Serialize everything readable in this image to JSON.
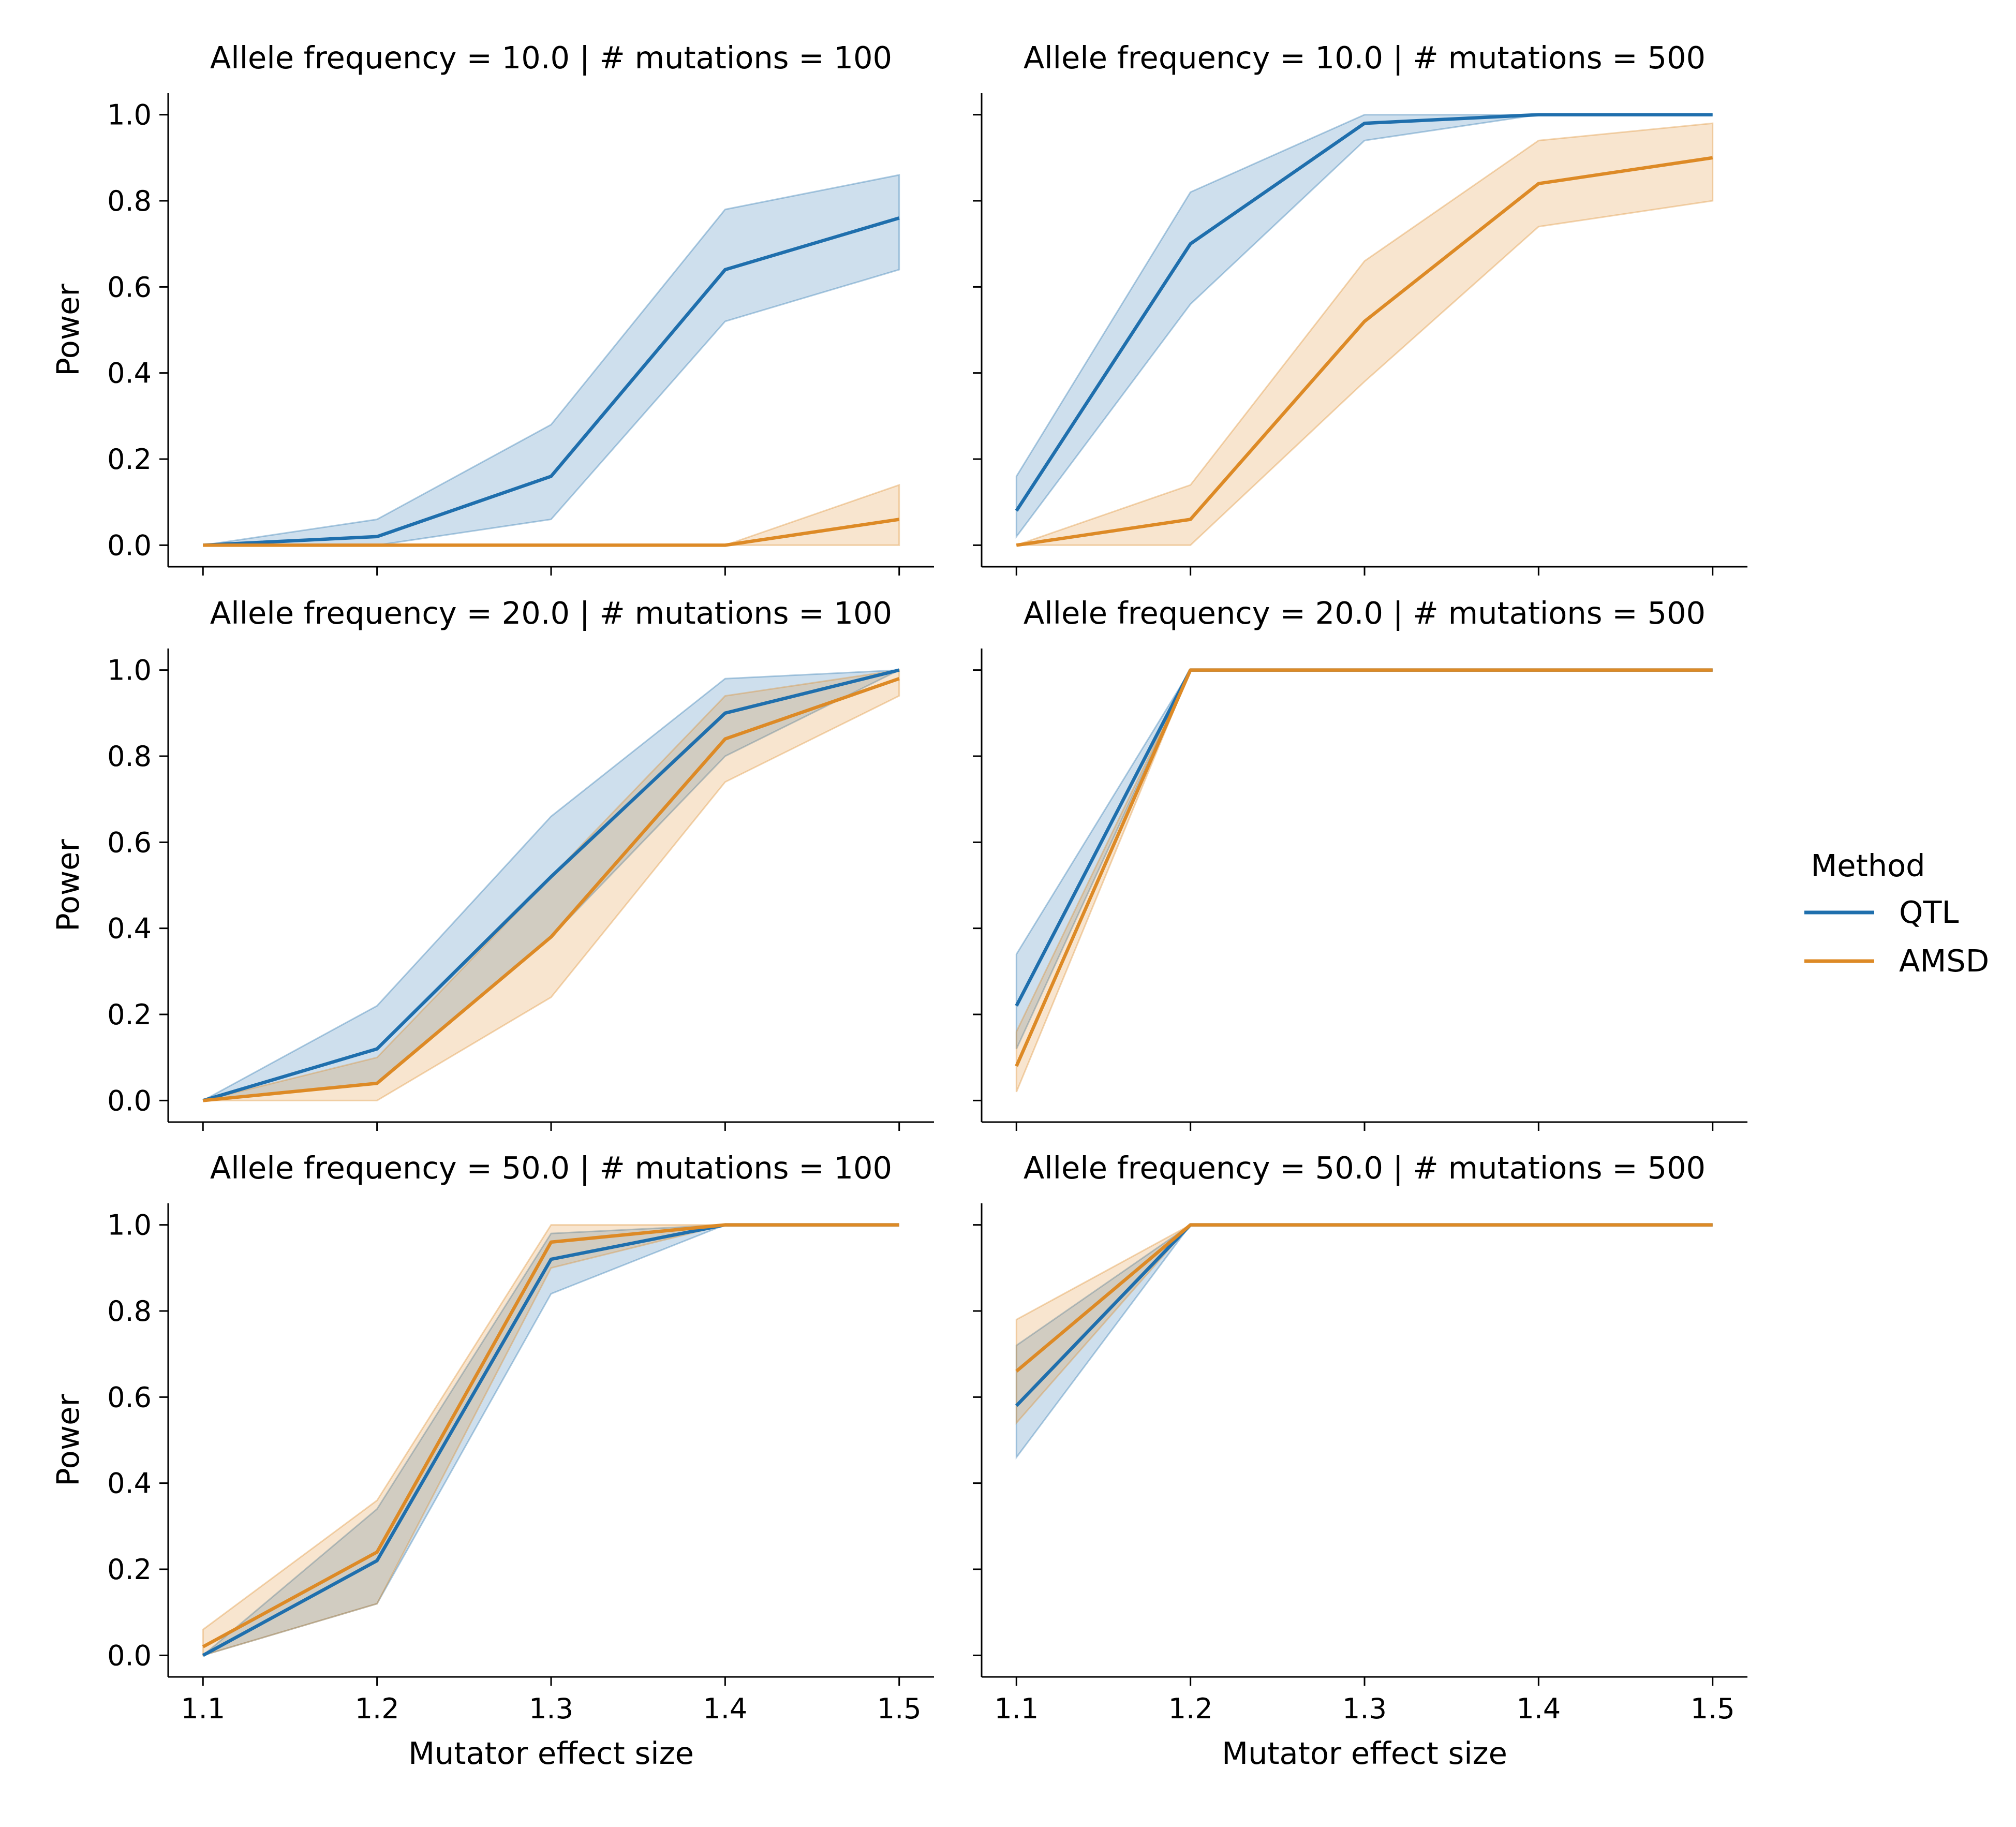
{
  "legend": {
    "title": "Method",
    "placement": "right",
    "entries": [
      {
        "name": "QTL",
        "color": "#1f6fad"
      },
      {
        "name": "AMSD",
        "color": "#dd8a26"
      }
    ]
  },
  "axes": {
    "xlabel": "Mutator effect size",
    "ylabel": "Power",
    "xlim": [
      1.08,
      1.52
    ],
    "ylim": [
      -0.05,
      1.05
    ],
    "xticks": [
      "1.1",
      "1.2",
      "1.3",
      "1.4",
      "1.5"
    ],
    "yticks": [
      "0.0",
      "0.2",
      "0.4",
      "0.6",
      "0.8",
      "1.0"
    ]
  },
  "chart_data": [
    {
      "type": "line",
      "title": "Allele frequency = 10.0 | # mutations = 100",
      "x": [
        1.1,
        1.2,
        1.3,
        1.4,
        1.5
      ],
      "series": [
        {
          "name": "QTL",
          "values": [
            0.0,
            0.02,
            0.16,
            0.64,
            0.76
          ],
          "lower": [
            0.0,
            0.0,
            0.06,
            0.52,
            0.64
          ],
          "upper": [
            0.0,
            0.06,
            0.28,
            0.78,
            0.86
          ]
        },
        {
          "name": "AMSD",
          "values": [
            0.0,
            0.0,
            0.0,
            0.0,
            0.06
          ],
          "lower": [
            0.0,
            0.0,
            0.0,
            0.0,
            0.0
          ],
          "upper": [
            0.0,
            0.0,
            0.0,
            0.0,
            0.14
          ]
        }
      ]
    },
    {
      "type": "line",
      "title": "Allele frequency = 10.0 | # mutations = 500",
      "x": [
        1.1,
        1.2,
        1.3,
        1.4,
        1.5
      ],
      "series": [
        {
          "name": "QTL",
          "values": [
            0.08,
            0.7,
            0.98,
            1.0,
            1.0
          ],
          "lower": [
            0.02,
            0.56,
            0.94,
            1.0,
            1.0
          ],
          "upper": [
            0.16,
            0.82,
            1.0,
            1.0,
            1.0
          ]
        },
        {
          "name": "AMSD",
          "values": [
            0.0,
            0.06,
            0.52,
            0.84,
            0.9
          ],
          "lower": [
            0.0,
            0.0,
            0.38,
            0.74,
            0.8
          ],
          "upper": [
            0.0,
            0.14,
            0.66,
            0.94,
            0.98
          ]
        }
      ]
    },
    {
      "type": "line",
      "title": "Allele frequency = 20.0 | # mutations = 100",
      "x": [
        1.1,
        1.2,
        1.3,
        1.4,
        1.5
      ],
      "series": [
        {
          "name": "QTL",
          "values": [
            0.0,
            0.12,
            0.52,
            0.9,
            1.0
          ],
          "lower": [
            0.0,
            0.04,
            0.38,
            0.8,
            1.0
          ],
          "upper": [
            0.0,
            0.22,
            0.66,
            0.98,
            1.0
          ]
        },
        {
          "name": "AMSD",
          "values": [
            0.0,
            0.04,
            0.38,
            0.84,
            0.98
          ],
          "lower": [
            0.0,
            0.0,
            0.24,
            0.74,
            0.94
          ],
          "upper": [
            0.0,
            0.1,
            0.52,
            0.94,
            1.0
          ]
        }
      ]
    },
    {
      "type": "line",
      "title": "Allele frequency = 20.0 | # mutations = 500",
      "x": [
        1.1,
        1.2,
        1.3,
        1.4,
        1.5
      ],
      "series": [
        {
          "name": "QTL",
          "values": [
            0.22,
            1.0,
            1.0,
            1.0,
            1.0
          ],
          "lower": [
            0.12,
            1.0,
            1.0,
            1.0,
            1.0
          ],
          "upper": [
            0.34,
            1.0,
            1.0,
            1.0,
            1.0
          ]
        },
        {
          "name": "AMSD",
          "values": [
            0.08,
            1.0,
            1.0,
            1.0,
            1.0
          ],
          "lower": [
            0.02,
            1.0,
            1.0,
            1.0,
            1.0
          ],
          "upper": [
            0.16,
            1.0,
            1.0,
            1.0,
            1.0
          ]
        }
      ]
    },
    {
      "type": "line",
      "title": "Allele frequency = 50.0 | # mutations = 100",
      "x": [
        1.1,
        1.2,
        1.3,
        1.4,
        1.5
      ],
      "series": [
        {
          "name": "QTL",
          "values": [
            0.0,
            0.22,
            0.92,
            1.0,
            1.0
          ],
          "lower": [
            0.0,
            0.12,
            0.84,
            1.0,
            1.0
          ],
          "upper": [
            0.0,
            0.34,
            0.98,
            1.0,
            1.0
          ]
        },
        {
          "name": "AMSD",
          "values": [
            0.02,
            0.24,
            0.96,
            1.0,
            1.0
          ],
          "lower": [
            0.0,
            0.12,
            0.9,
            1.0,
            1.0
          ],
          "upper": [
            0.06,
            0.36,
            1.0,
            1.0,
            1.0
          ]
        }
      ]
    },
    {
      "type": "line",
      "title": "Allele frequency = 50.0 | # mutations = 500",
      "x": [
        1.1,
        1.2,
        1.3,
        1.4,
        1.5
      ],
      "series": [
        {
          "name": "QTL",
          "values": [
            0.58,
            1.0,
            1.0,
            1.0,
            1.0
          ],
          "lower": [
            0.46,
            1.0,
            1.0,
            1.0,
            1.0
          ],
          "upper": [
            0.72,
            1.0,
            1.0,
            1.0,
            1.0
          ]
        },
        {
          "name": "AMSD",
          "values": [
            0.66,
            1.0,
            1.0,
            1.0,
            1.0
          ],
          "lower": [
            0.54,
            1.0,
            1.0,
            1.0,
            1.0
          ],
          "upper": [
            0.78,
            1.0,
            1.0,
            1.0,
            1.0
          ]
        }
      ]
    }
  ]
}
